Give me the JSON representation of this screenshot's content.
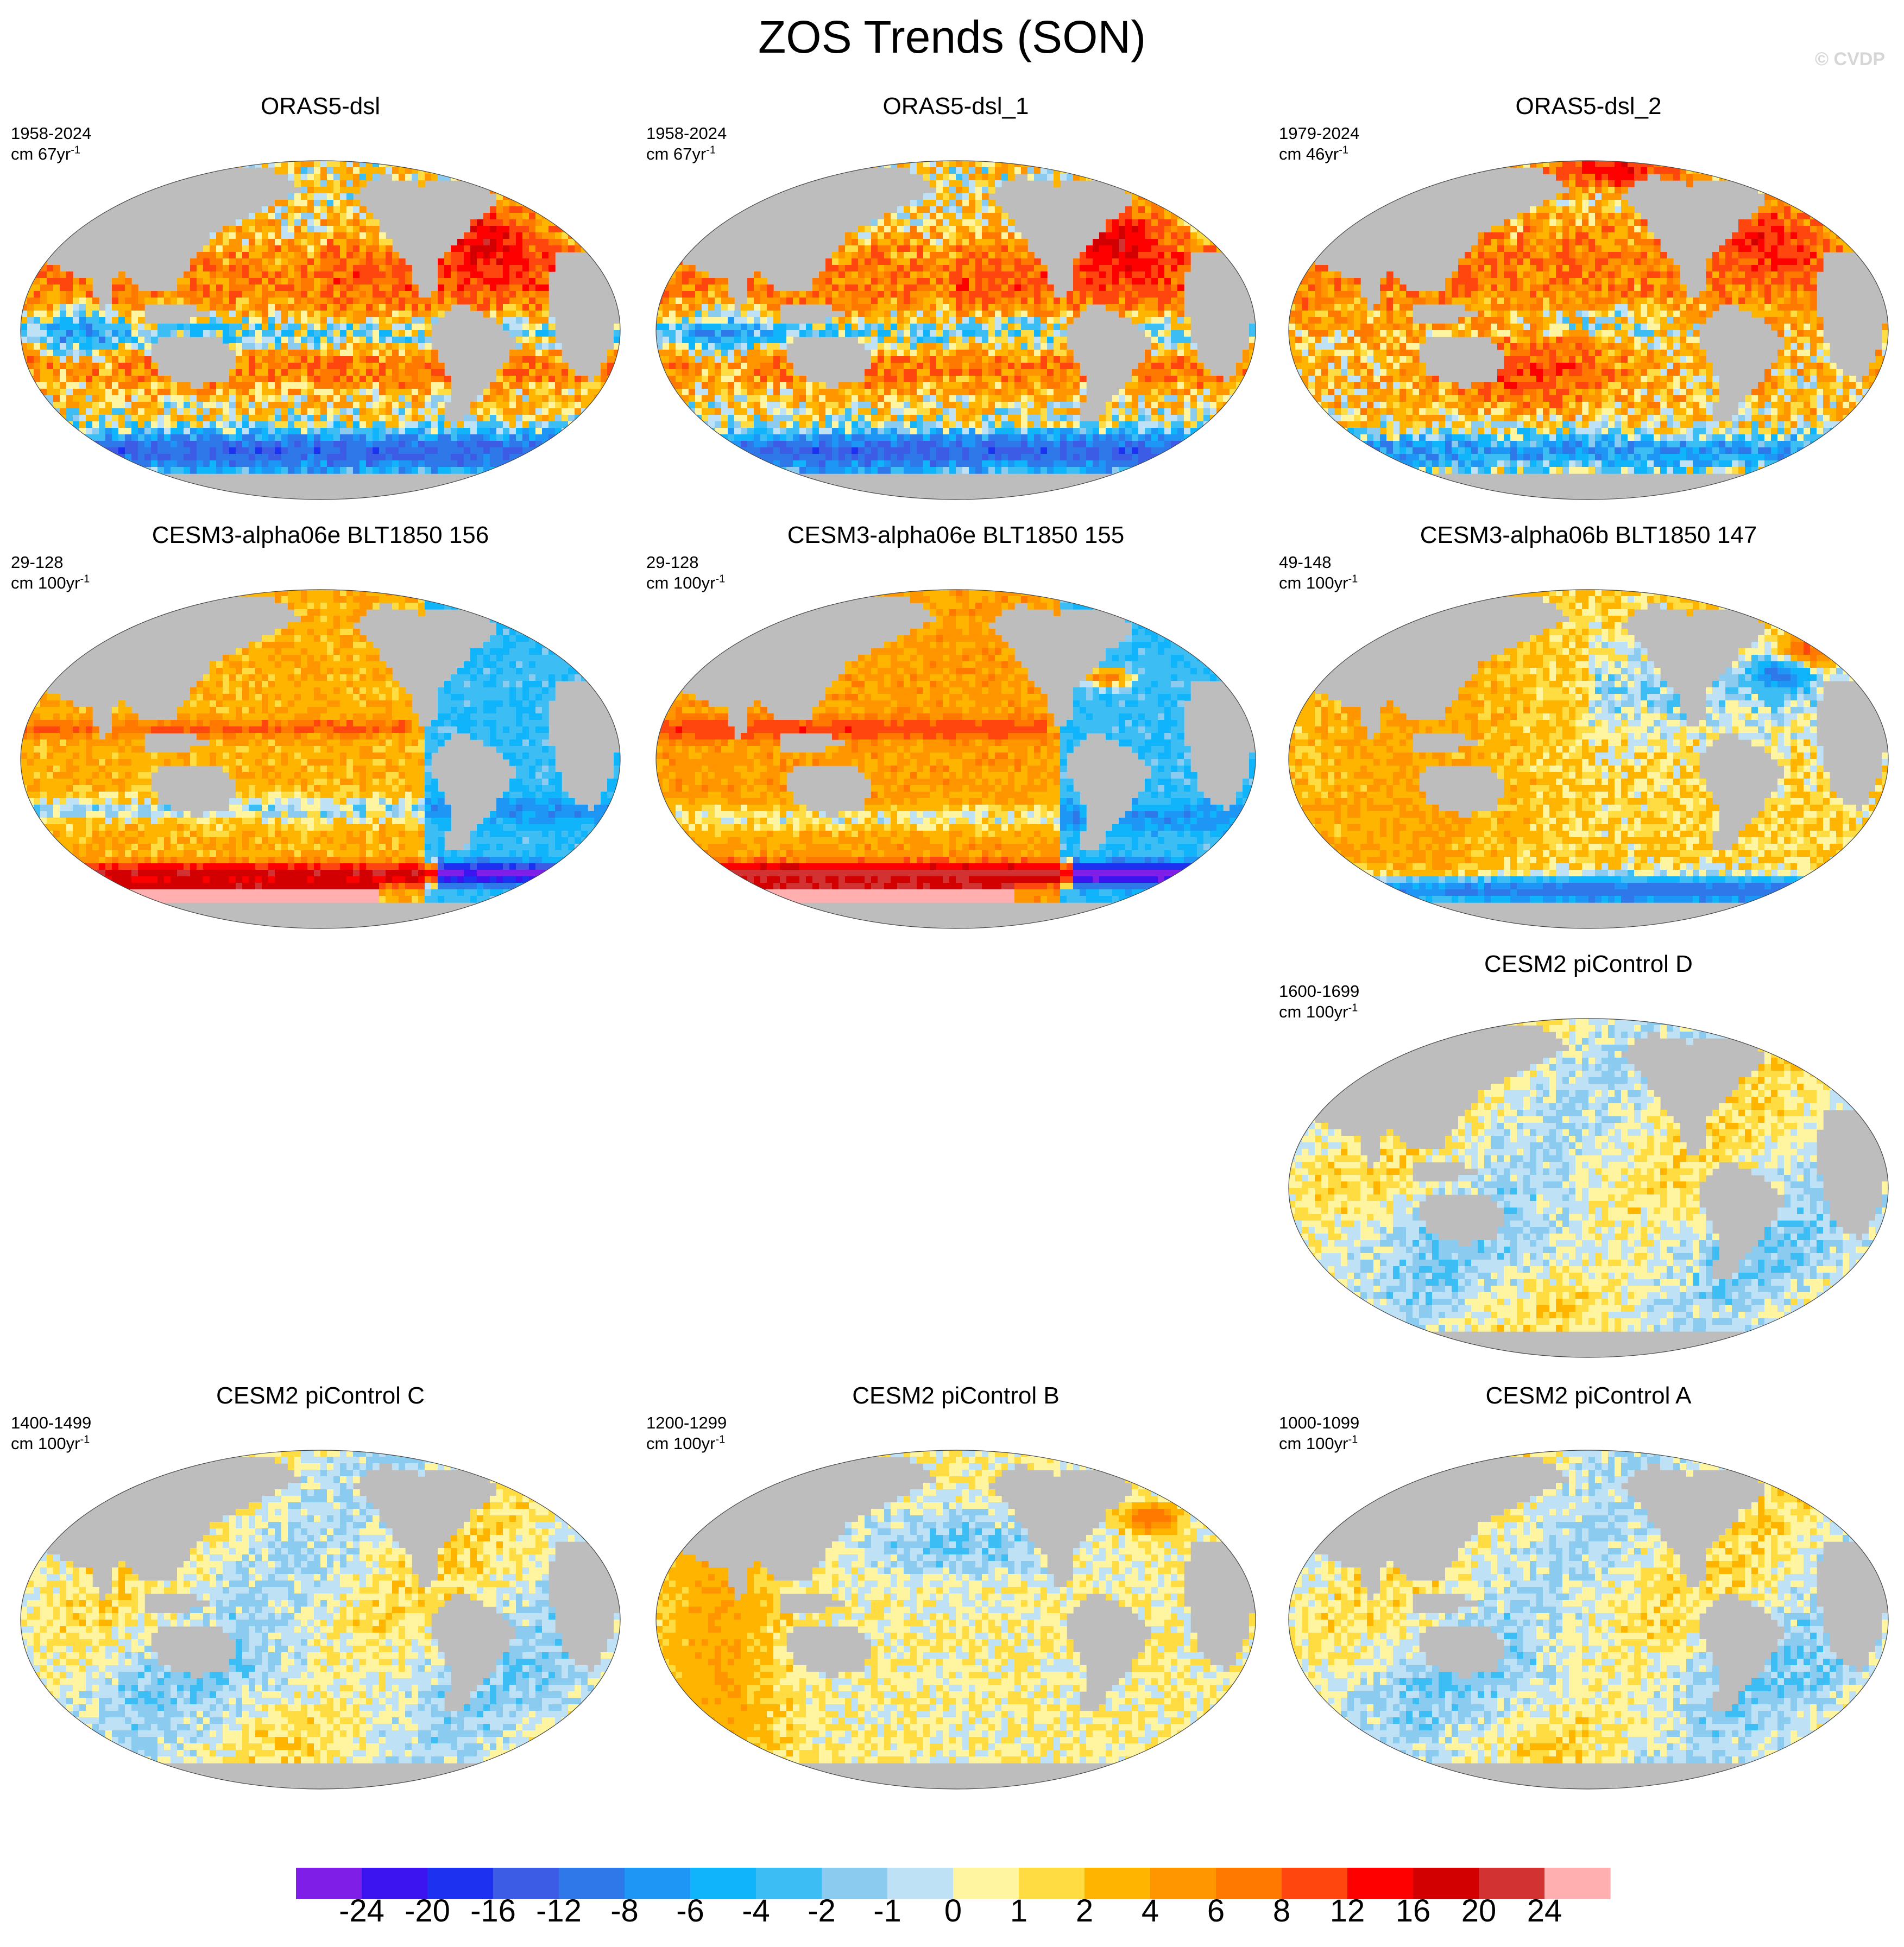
{
  "title": "ZOS Trends (SON)",
  "watermark": "© CVDP",
  "colors": {
    "land": "#bdbdbd",
    "ice": "#ffffff",
    "palette": [
      "#7e1ee6",
      "#3c14f0",
      "#1c32f0",
      "#3c5ce6",
      "#2e78ea",
      "#1e96f5",
      "#0fb4fa",
      "#3cbef5",
      "#8ccbf0",
      "#bee1f5",
      "#fff5a0",
      "#ffdc41",
      "#ffb400",
      "#ff9600",
      "#ff7800",
      "#ff460f",
      "#ff0000",
      "#d20000",
      "#d23232",
      "#ffafaf"
    ]
  },
  "chart_data": {
    "type": "heatmap",
    "title": "ZOS Trends (SON)",
    "colorbar": {
      "levels": [
        "-24",
        "-20",
        "-16",
        "-12",
        "-8",
        "-6",
        "-4",
        "-2",
        "-1",
        "0",
        "1",
        "2",
        "4",
        "6",
        "8",
        "12",
        "16",
        "20",
        "24"
      ],
      "bins": 20
    },
    "panels": [
      {
        "id": "orasdsl",
        "title": "ORAS5-dsl",
        "years": "1958-2024",
        "units": "cm 67yr",
        "exp": "-1",
        "pattern": "obs1",
        "seed": 11
      },
      {
        "id": "orasdsl1",
        "title": "ORAS5-dsl_1",
        "years": "1958-2024",
        "units": "cm 67yr",
        "exp": "-1",
        "pattern": "obs1",
        "seed": 12
      },
      {
        "id": "orasdsl2",
        "title": "ORAS5-dsl_2",
        "years": "1979-2024",
        "units": "cm 46yr",
        "exp": "-1",
        "pattern": "obs2",
        "seed": 13
      },
      {
        "id": "cesm3a156",
        "title": "CESM3-alpha06e BLT1850 156",
        "years": "29-128",
        "units": "cm 100yr",
        "exp": "-1",
        "pattern": "c3a",
        "seed": 21
      },
      {
        "id": "cesm3a155",
        "title": "CESM3-alpha06e BLT1850 155",
        "years": "29-128",
        "units": "cm 100yr",
        "exp": "-1",
        "pattern": "c3b",
        "seed": 22
      },
      {
        "id": "cesm3b147",
        "title": "CESM3-alpha06b BLT1850 147",
        "years": "49-148",
        "units": "cm 100yr",
        "exp": "-1",
        "pattern": "c3c",
        "seed": 23
      },
      {
        "id": "cesm2d",
        "title": "CESM2 piControl D",
        "years": "1600-1699",
        "units": "cm 100yr",
        "exp": "-1",
        "pattern": "pic",
        "seed": 31
      },
      {
        "id": "cesm2c",
        "title": "CESM2 piControl C",
        "years": "1400-1499",
        "units": "cm 100yr",
        "exp": "-1",
        "pattern": "pic",
        "seed": 32
      },
      {
        "id": "cesm2b",
        "title": "CESM2 piControl B",
        "years": "1200-1299",
        "units": "cm 100yr",
        "exp": "-1",
        "pattern": "picb",
        "seed": 33
      },
      {
        "id": "cesm2a",
        "title": "CESM2 piControl A",
        "years": "1000-1099",
        "units": "cm 100yr",
        "exp": "-1",
        "pattern": "pic",
        "seed": 34
      }
    ]
  }
}
